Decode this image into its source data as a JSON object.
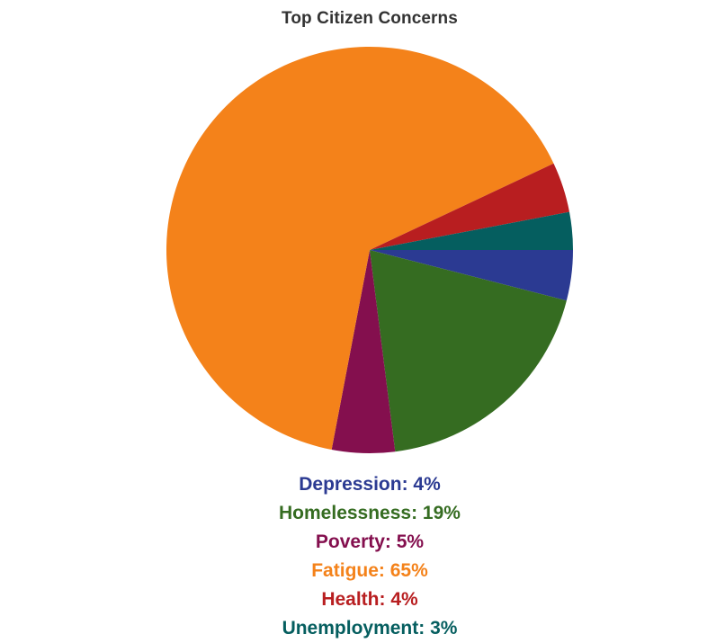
{
  "chart_data": {
    "type": "pie",
    "title": "Top Citizen Concerns",
    "slices": [
      {
        "label": "Depression",
        "value": 4,
        "color": "#2b3a92"
      },
      {
        "label": "Homelessness",
        "value": 19,
        "color": "#356c21"
      },
      {
        "label": "Poverty",
        "value": 5,
        "color": "#840f4e"
      },
      {
        "label": "Fatigue",
        "value": 65,
        "color": "#f4821a"
      },
      {
        "label": "Health",
        "value": 4,
        "color": "#b81e20"
      },
      {
        "label": "Unemployment",
        "value": 3,
        "color": "#055e5f"
      }
    ],
    "value_suffix": "%",
    "legend_position": "bottom"
  }
}
